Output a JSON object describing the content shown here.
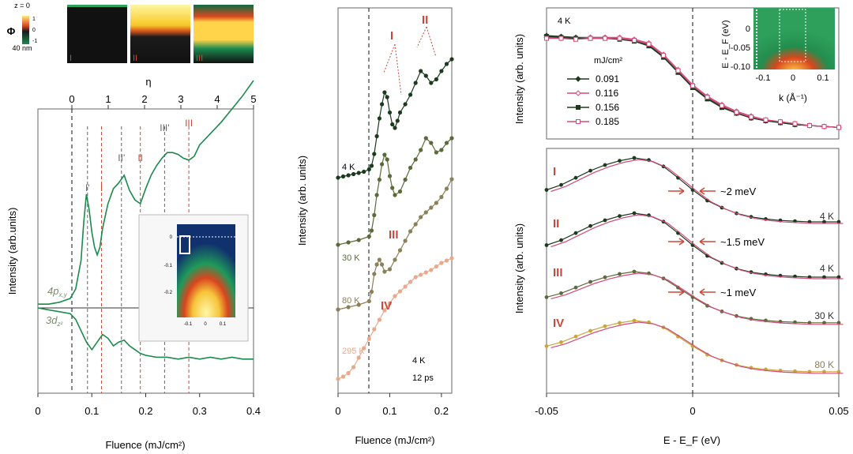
{
  "colors": {
    "green": "#1b8a4c",
    "dark": "#1d3a1f",
    "olive": "#5b6a3a",
    "tan": "#8a8059",
    "peach": "#e8a98c",
    "red": "#c84a3a",
    "pink": "#d24b7a",
    "gold": "#c9a63a"
  },
  "chart_data": [
    {
      "type": "heatmap",
      "id": "phi-maps",
      "labels": [
        "I",
        "II",
        "III"
      ],
      "z_top": "z = 0",
      "z_bottom": "40 nm",
      "colorbar_label": "Φ",
      "colorbar_ticks": [
        "1",
        "0",
        "-1"
      ]
    },
    {
      "type": "line",
      "id": "fluence-main",
      "xlabel": "Fluence (mJ/cm²)",
      "ylabel": "Intensity (arb.units)",
      "top_axis_label": "η",
      "xlim": [
        0,
        0.4
      ],
      "xticks": [
        "0",
        "0.1",
        "0.2",
        "0.3",
        "0.4"
      ],
      "top_ticks": [
        "0",
        "1",
        "2",
        "3",
        "4",
        "5"
      ],
      "series": [
        {
          "name": "4p x,y",
          "label_main": "4p",
          "label_sub": "x,y",
          "x": [
            0.0,
            0.02,
            0.04,
            0.06,
            0.07,
            0.08,
            0.085,
            0.09,
            0.095,
            0.1,
            0.105,
            0.11,
            0.115,
            0.12,
            0.13,
            0.14,
            0.15,
            0.16,
            0.17,
            0.18,
            0.19,
            0.2,
            0.21,
            0.22,
            0.23,
            0.24,
            0.25,
            0.26,
            0.27,
            0.28,
            0.29,
            0.3,
            0.32,
            0.34,
            0.36,
            0.38,
            0.4
          ],
          "y": [
            0.02,
            0.02,
            0.03,
            0.05,
            0.1,
            0.25,
            0.45,
            0.6,
            0.52,
            0.4,
            0.32,
            0.28,
            0.32,
            0.42,
            0.55,
            0.63,
            0.66,
            0.7,
            0.62,
            0.57,
            0.55,
            0.63,
            0.7,
            0.75,
            0.79,
            0.82,
            0.82,
            0.81,
            0.79,
            0.78,
            0.8,
            0.86,
            0.92,
            0.98,
            1.05,
            1.12,
            1.2
          ]
        },
        {
          "name": "3d z²",
          "label_main": "3d",
          "label_sub": "z²",
          "x": [
            0.0,
            0.02,
            0.04,
            0.06,
            0.07,
            0.08,
            0.09,
            0.1,
            0.11,
            0.12,
            0.13,
            0.14,
            0.15,
            0.16,
            0.17,
            0.18,
            0.19,
            0.2,
            0.22,
            0.24,
            0.26,
            0.28,
            0.3,
            0.32,
            0.34,
            0.36,
            0.38,
            0.4
          ],
          "y": [
            0.0,
            -0.01,
            -0.02,
            -0.03,
            -0.06,
            -0.12,
            -0.18,
            -0.22,
            -0.18,
            -0.14,
            -0.16,
            -0.2,
            -0.18,
            -0.17,
            -0.2,
            -0.22,
            -0.24,
            -0.25,
            -0.26,
            -0.26,
            -0.27,
            -0.26,
            -0.27,
            -0.26,
            -0.27,
            -0.26,
            -0.27,
            -0.27
          ]
        }
      ],
      "markers": [
        {
          "label": "I'",
          "x": 0.092
        },
        {
          "label": "I",
          "x": 0.118
        },
        {
          "label": "II'",
          "x": 0.155
        },
        {
          "label": "II",
          "x": 0.19
        },
        {
          "label": "III'",
          "x": 0.235
        },
        {
          "label": "III",
          "x": 0.28
        }
      ],
      "inset": {
        "yticks": [
          "0",
          "-0.1",
          "-0.2"
        ],
        "xticks": [
          "-0.1",
          "0",
          "0.1"
        ]
      }
    },
    {
      "type": "line",
      "id": "fluence-middle",
      "xlabel": "Fluence (mJ/cm²)",
      "ylabel": "Intensity (arb. units)",
      "xlim": [
        0,
        0.22
      ],
      "xticks": [
        "0",
        "0.1",
        "0.2"
      ],
      "note_temp": "4 K",
      "note_time": "12 ps",
      "series": [
        {
          "name": "4 K",
          "x": [
            0.0,
            0.01,
            0.02,
            0.03,
            0.04,
            0.05,
            0.06,
            0.065,
            0.07,
            0.075,
            0.08,
            0.085,
            0.09,
            0.095,
            0.1,
            0.105,
            0.11,
            0.115,
            0.12,
            0.13,
            0.14,
            0.15,
            0.16,
            0.17,
            0.18,
            0.19,
            0.2,
            0.21,
            0.22
          ],
          "y": [
            0.0,
            0.01,
            0.02,
            0.03,
            0.04,
            0.05,
            0.07,
            0.1,
            0.2,
            0.35,
            0.5,
            0.62,
            0.72,
            0.68,
            0.55,
            0.45,
            0.42,
            0.48,
            0.55,
            0.62,
            0.7,
            0.8,
            0.9,
            0.86,
            0.8,
            0.83,
            0.9,
            0.96,
            1.0
          ]
        },
        {
          "name": "30 K",
          "x": [
            0.0,
            0.02,
            0.04,
            0.06,
            0.065,
            0.07,
            0.075,
            0.08,
            0.085,
            0.09,
            0.095,
            0.1,
            0.105,
            0.11,
            0.12,
            0.13,
            0.14,
            0.15,
            0.16,
            0.17,
            0.18,
            0.19,
            0.2,
            0.21,
            0.22
          ],
          "y": [
            0.0,
            0.02,
            0.04,
            0.07,
            0.12,
            0.25,
            0.42,
            0.55,
            0.68,
            0.76,
            0.72,
            0.58,
            0.48,
            0.42,
            0.45,
            0.55,
            0.65,
            0.72,
            0.8,
            0.9,
            0.86,
            0.78,
            0.8,
            0.86,
            0.9
          ]
        },
        {
          "name": "80 K",
          "x": [
            0.0,
            0.02,
            0.04,
            0.06,
            0.065,
            0.07,
            0.075,
            0.08,
            0.085,
            0.09,
            0.1,
            0.11,
            0.12,
            0.13,
            0.14,
            0.15,
            0.16,
            0.17,
            0.18,
            0.19,
            0.2,
            0.21,
            0.22
          ],
          "y": [
            0.0,
            0.02,
            0.04,
            0.07,
            0.15,
            0.3,
            0.38,
            0.42,
            0.38,
            0.32,
            0.34,
            0.42,
            0.5,
            0.58,
            0.66,
            0.72,
            0.78,
            0.82,
            0.86,
            0.9,
            0.95,
            1.02,
            1.1
          ]
        },
        {
          "name": "295 K",
          "x": [
            0.0,
            0.01,
            0.02,
            0.03,
            0.04,
            0.05,
            0.06,
            0.07,
            0.08,
            0.09,
            0.1,
            0.11,
            0.12,
            0.13,
            0.14,
            0.15,
            0.16,
            0.17,
            0.18,
            0.19,
            0.2,
            0.21,
            0.22
          ],
          "y": [
            0.0,
            0.02,
            0.05,
            0.1,
            0.18,
            0.26,
            0.34,
            0.42,
            0.5,
            0.58,
            0.64,
            0.7,
            0.74,
            0.78,
            0.82,
            0.86,
            0.88,
            0.9,
            0.92,
            0.95,
            0.98,
            1.0,
            1.02
          ]
        }
      ],
      "annotations": [
        "I",
        "II",
        "III",
        "IV"
      ]
    },
    {
      "type": "line",
      "id": "edc-top",
      "ylabel": "Intensity (arb. units)",
      "xlim": [
        -0.05,
        0.05
      ],
      "temp": "4 K",
      "legend_title": "mJ/cm²",
      "legend_placement": "center-left",
      "series": [
        {
          "name": "0.091",
          "x": [
            -0.05,
            -0.045,
            -0.04,
            -0.035,
            -0.03,
            -0.025,
            -0.02,
            -0.015,
            -0.01,
            -0.005,
            0.0,
            0.005,
            0.01,
            0.015,
            0.02,
            0.025,
            0.03,
            0.035,
            0.04,
            0.045,
            0.05
          ],
          "y": [
            1.0,
            0.99,
            0.98,
            0.98,
            0.98,
            0.97,
            0.95,
            0.9,
            0.78,
            0.62,
            0.46,
            0.34,
            0.25,
            0.18,
            0.13,
            0.1,
            0.08,
            0.06,
            0.05,
            0.04,
            0.03
          ]
        },
        {
          "name": "0.116",
          "x": [
            -0.05,
            -0.045,
            -0.04,
            -0.035,
            -0.03,
            -0.025,
            -0.02,
            -0.015,
            -0.01,
            -0.005,
            0.0,
            0.005,
            0.01,
            0.015,
            0.02,
            0.025,
            0.03,
            0.035,
            0.04,
            0.045,
            0.05
          ],
          "y": [
            0.98,
            0.97,
            0.97,
            0.98,
            0.98,
            0.98,
            0.96,
            0.92,
            0.8,
            0.64,
            0.48,
            0.36,
            0.27,
            0.2,
            0.15,
            0.11,
            0.09,
            0.07,
            0.05,
            0.04,
            0.03
          ]
        },
        {
          "name": "0.156",
          "x": [
            -0.05,
            -0.045,
            -0.04,
            -0.035,
            -0.03,
            -0.025,
            -0.02,
            -0.015,
            -0.01,
            -0.005,
            0.0,
            0.005,
            0.01,
            0.015,
            0.02,
            0.025,
            0.03,
            0.035,
            0.04,
            0.045,
            0.05
          ],
          "y": [
            0.99,
            0.98,
            0.97,
            0.97,
            0.97,
            0.96,
            0.94,
            0.89,
            0.77,
            0.61,
            0.45,
            0.33,
            0.24,
            0.18,
            0.13,
            0.1,
            0.08,
            0.06,
            0.05,
            0.04,
            0.03
          ]
        },
        {
          "name": "0.185",
          "x": [
            -0.05,
            -0.045,
            -0.04,
            -0.035,
            -0.03,
            -0.025,
            -0.02,
            -0.015,
            -0.01,
            -0.005,
            0.0,
            0.005,
            0.01,
            0.015,
            0.02,
            0.025,
            0.03,
            0.035,
            0.04,
            0.045,
            0.05
          ],
          "y": [
            0.97,
            0.97,
            0.96,
            0.97,
            0.97,
            0.97,
            0.95,
            0.91,
            0.79,
            0.63,
            0.47,
            0.35,
            0.26,
            0.19,
            0.14,
            0.11,
            0.09,
            0.07,
            0.05,
            0.04,
            0.03
          ]
        }
      ],
      "inset": {
        "ylabel": "E - E_F (eV)",
        "xlabel": "k (Å⁻¹)",
        "yticks": [
          "0",
          "-0.05",
          "-0.10"
        ],
        "xticks": [
          "-0.1",
          "0",
          "0.1"
        ]
      }
    },
    {
      "type": "line",
      "id": "edc-bottom",
      "xlabel": "E - E_F (eV)",
      "ylabel": "Intensity (arb. units)",
      "xlim": [
        -0.05,
        0.05
      ],
      "xticks": [
        "-0.05",
        "0",
        "0.05"
      ],
      "groups": [
        {
          "label": "I",
          "temp": "4 K",
          "shift": "~2 meV"
        },
        {
          "label": "II",
          "temp": "4 K",
          "shift": "~1.5 meV"
        },
        {
          "label": "III",
          "temp": "30 K",
          "shift": "~1 meV"
        },
        {
          "label": "IV",
          "temp": "80 K",
          "shift": ""
        }
      ],
      "x": [
        -0.05,
        -0.045,
        -0.04,
        -0.035,
        -0.03,
        -0.025,
        -0.02,
        -0.015,
        -0.01,
        -0.005,
        0.0,
        0.005,
        0.01,
        0.015,
        0.02,
        0.025,
        0.03,
        0.035,
        0.04,
        0.045,
        0.05
      ],
      "profile": [
        0.55,
        0.62,
        0.72,
        0.82,
        0.9,
        0.96,
        1.0,
        0.97,
        0.88,
        0.72,
        0.55,
        0.4,
        0.3,
        0.22,
        0.17,
        0.14,
        0.12,
        0.11,
        0.1,
        0.1,
        0.1
      ]
    }
  ]
}
